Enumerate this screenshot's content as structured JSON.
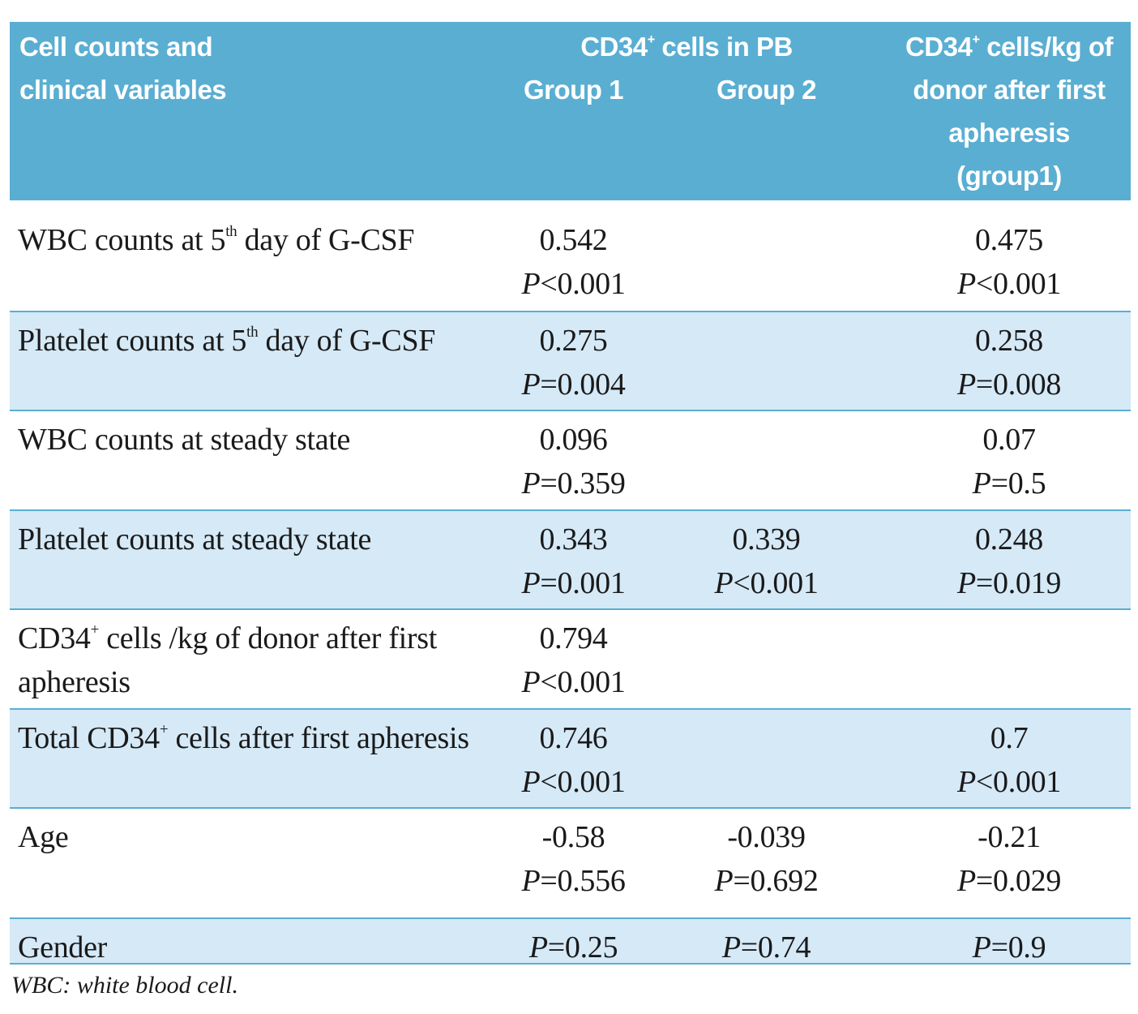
{
  "table": {
    "header": {
      "variables": "Cell counts and clinical variables",
      "pb": [
        "CD34",
        {
          "sup": "+"
        },
        " cells in PB"
      ],
      "group1": "Group 1",
      "group2": "Group 2",
      "donor": [
        "CD34",
        {
          "sup": "+"
        },
        " cells/kg of donor after first apheresis (group1)"
      ]
    },
    "rows": [
      {
        "label": [
          "WBC counts at 5",
          {
            "sup": "th"
          },
          " day of G-CSF"
        ],
        "g1": {
          "r": 0.542,
          "p": "P<0.001"
        },
        "g3": {
          "r": 0.475,
          "p": "P<0.001"
        }
      },
      {
        "label": [
          "Platelet counts at 5",
          {
            "sup": "th"
          },
          " day of G-CSF"
        ],
        "g1": {
          "r": 0.275,
          "p": "P=0.004"
        },
        "g3": {
          "r": 0.258,
          "p": "P=0.008"
        }
      },
      {
        "label": [
          "WBC counts at steady state"
        ],
        "g1": {
          "r": 0.096,
          "p": "P=0.359"
        },
        "g3": {
          "r": 0.07,
          "p": "P=0.5"
        }
      },
      {
        "label": [
          "Platelet counts at steady state"
        ],
        "g1": {
          "r": 0.343,
          "p": "P=0.001"
        },
        "g2": {
          "r": 0.339,
          "p": "P<0.001"
        },
        "g3": {
          "r": 0.248,
          "p": "P=0.019"
        }
      },
      {
        "label": [
          "CD34",
          {
            "sup": "+"
          },
          " cells /kg of donor after first apheresis"
        ],
        "g1": {
          "r": 0.794,
          "p": "P<0.001"
        }
      },
      {
        "label": [
          "Total CD34",
          {
            "sup": "+"
          },
          " cells after first apheresis"
        ],
        "g1": {
          "r": 0.746,
          "p": "P<0.001"
        },
        "g3": {
          "r": 0.7,
          "p": "P<0.001"
        }
      },
      {
        "label": [
          "Age"
        ],
        "g1": {
          "r": -0.58,
          "p": "P=0.556"
        },
        "g2": {
          "r": -0.039,
          "p": "P=0.692"
        },
        "g3": {
          "r": -0.21,
          "p": "P=0.029"
        }
      },
      {
        "label": [
          "Gender"
        ],
        "g1": {
          "p": "P=0.25"
        },
        "g2": {
          "p": "P=0.74"
        },
        "g3": {
          "p": "P=0.9"
        }
      }
    ],
    "footnote": "WBC: white blood cell."
  }
}
